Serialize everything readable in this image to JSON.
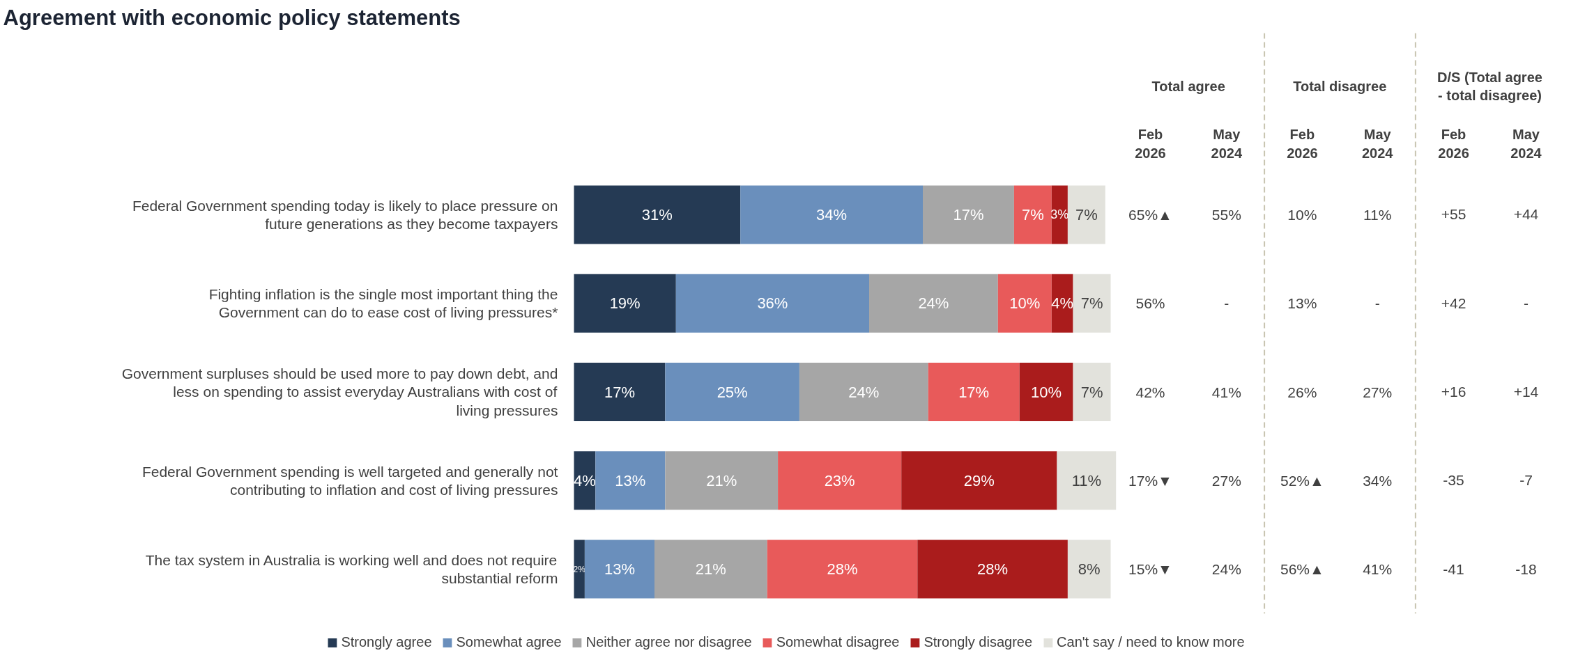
{
  "chart_data": {
    "type": "bar",
    "orientation": "horizontal",
    "stacked": true,
    "title": "Agreement with economic policy statements",
    "categories": [
      "Federal Government spending today is likely to place pressure on future generations as they become taxpayers",
      "Fighting inflation is the single most important thing the Government can do to ease cost of living pressures*",
      "Government surpluses should be used more to pay down debt, and less on spending to assist everyday Australians with cost of living pressures",
      "Federal Government spending is well targeted and generally not contributing to inflation and cost of living pressures",
      "The tax system in Australia is working well and does not require substantial reform"
    ],
    "series": [
      {
        "name": "Strongly agree",
        "color": "#253a54",
        "values": [
          31,
          19,
          17,
          4,
          2
        ],
        "value_labels": [
          "31%",
          "19%",
          "17%",
          "4%",
          "2%"
        ]
      },
      {
        "name": "Somewhat agree",
        "color": "#6a8fbc",
        "values": [
          34,
          36,
          25,
          13,
          13
        ],
        "value_labels": [
          "34%",
          "36%",
          "25%",
          "13%",
          "13%"
        ]
      },
      {
        "name": "Neither agree nor disagree",
        "color": "#a6a6a6",
        "values": [
          17,
          24,
          24,
          21,
          21
        ],
        "value_labels": [
          "17%",
          "24%",
          "24%",
          "21%",
          "21%"
        ]
      },
      {
        "name": "Somewhat disagree",
        "color": "#e85a5a",
        "values": [
          7,
          10,
          17,
          23,
          28
        ],
        "value_labels": [
          "7%",
          "10%",
          "17%",
          "23%",
          "28%"
        ]
      },
      {
        "name": "Strongly disagree",
        "color": "#aa1c1c",
        "values": [
          3,
          4,
          10,
          29,
          28
        ],
        "value_labels": [
          "3%",
          "4%",
          "10%",
          "29%",
          "28%"
        ]
      },
      {
        "name": "Can't say / need to know more",
        "color": "#e2e2dc",
        "values": [
          7,
          7,
          7,
          11,
          8
        ],
        "value_labels": [
          "7%",
          "7%",
          "7%",
          "11%",
          "8%"
        ]
      }
    ],
    "annotations": [
      "Total agree",
      "Total disagree",
      "D/S (Total agree - total disagree)",
      "Feb 2026",
      "May 2024",
      "Feb 2026",
      "May 2024",
      "Feb 2026",
      "May 2024",
      "65%▲",
      "55%",
      "10%",
      "11%",
      "+55",
      "+44",
      "56%",
      "-",
      "13%",
      "-",
      "+42",
      "-",
      "42%",
      "41%",
      "26%",
      "27%",
      "+16",
      "+14",
      "17%▼",
      "27%",
      "52%▲",
      "34%",
      "-35",
      "-7",
      "15%▼",
      "24%",
      "56%▲",
      "41%",
      "-41",
      "-18"
    ],
    "grid": false,
    "legend": "bottom"
  }
}
